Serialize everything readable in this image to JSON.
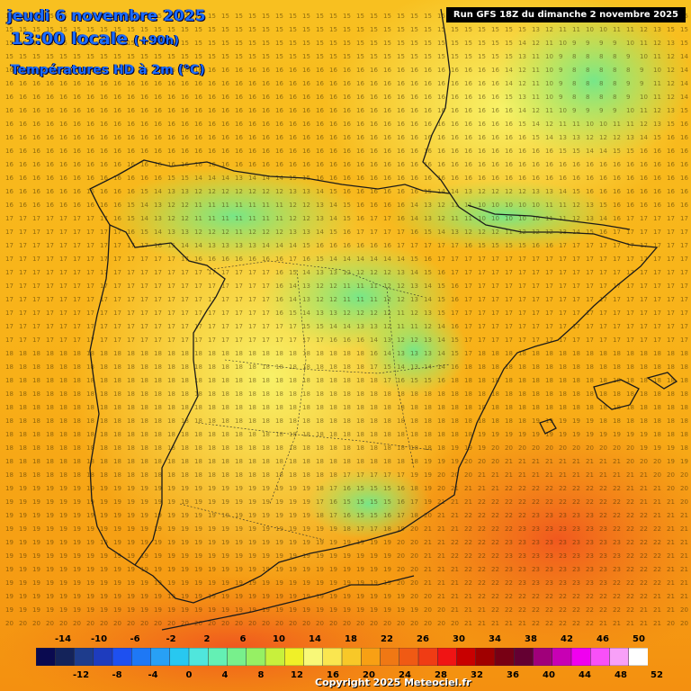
{
  "header": {
    "date": "jeudi 6 novembre 2025",
    "time": "13:00 locale",
    "lead": "(+90h)",
    "subtitle": "Températures HD à 2m (°C)"
  },
  "run_label": "Run GFS 18Z du dimanche 2 novembre 2025",
  "copyright": "Copyright 2025 Meteociel.fr",
  "legend": {
    "colors": [
      "#0a0a50",
      "#14235a",
      "#1e3c8c",
      "#1e3cbe",
      "#1e50f0",
      "#1e78f5",
      "#28a0f5",
      "#28c8f0",
      "#50e6dc",
      "#64f0b4",
      "#78f08c",
      "#96f064",
      "#c8f03c",
      "#f0f028",
      "#f8f878",
      "#fae650",
      "#f8c828",
      "#f8a014",
      "#f07814",
      "#f05a14",
      "#f03c14",
      "#f01414",
      "#c80000",
      "#a00000",
      "#780014",
      "#640032",
      "#a0007a",
      "#c800b4",
      "#f000f0",
      "#f850f8",
      "#f8a0f8",
      "#ffffff"
    ],
    "labels_top": [
      "-14",
      "-10",
      "-6",
      "-2",
      "2",
      "6",
      "10",
      "14",
      "18",
      "22",
      "26",
      "30",
      "34",
      "38",
      "42",
      "46",
      "50"
    ],
    "labels_bottom": [
      "-12",
      "-8",
      "-4",
      "0",
      "4",
      "8",
      "12",
      "16",
      "20",
      "24",
      "28",
      "32",
      "36",
      "40",
      "44",
      "48",
      "52"
    ]
  }
}
